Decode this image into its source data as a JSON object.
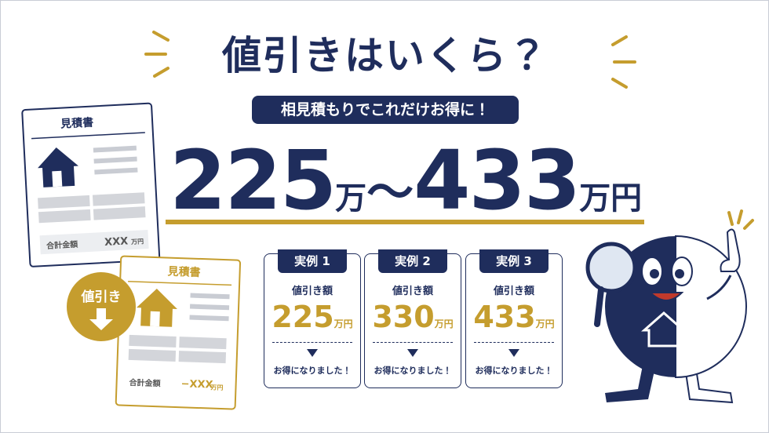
{
  "header": {
    "title": "値引きはいくら？",
    "subtitle": "相見積もりでこれだけお得に！"
  },
  "range": {
    "min": "225",
    "min_unit": "万",
    "separator": "〜",
    "max": "433",
    "max_unit": "万円"
  },
  "documents": [
    {
      "title": "見積書",
      "total_label": "合計金額",
      "total": "XXX",
      "unit": "万円"
    },
    {
      "title": "見積書",
      "total_label": "合計金額",
      "total": "−XXX",
      "unit": "万円"
    }
  ],
  "badge": {
    "label": "値引き"
  },
  "examples": [
    {
      "tag": "実例 1",
      "label": "値引き額",
      "amount": "225",
      "unit": "万円",
      "note": "お得になりました！"
    },
    {
      "tag": "実例 2",
      "label": "値引き額",
      "amount": "330",
      "unit": "万円",
      "note": "お得になりました！"
    },
    {
      "tag": "実例 3",
      "label": "値引き額",
      "amount": "433",
      "unit": "万円",
      "note": "お得になりました！"
    }
  ]
}
